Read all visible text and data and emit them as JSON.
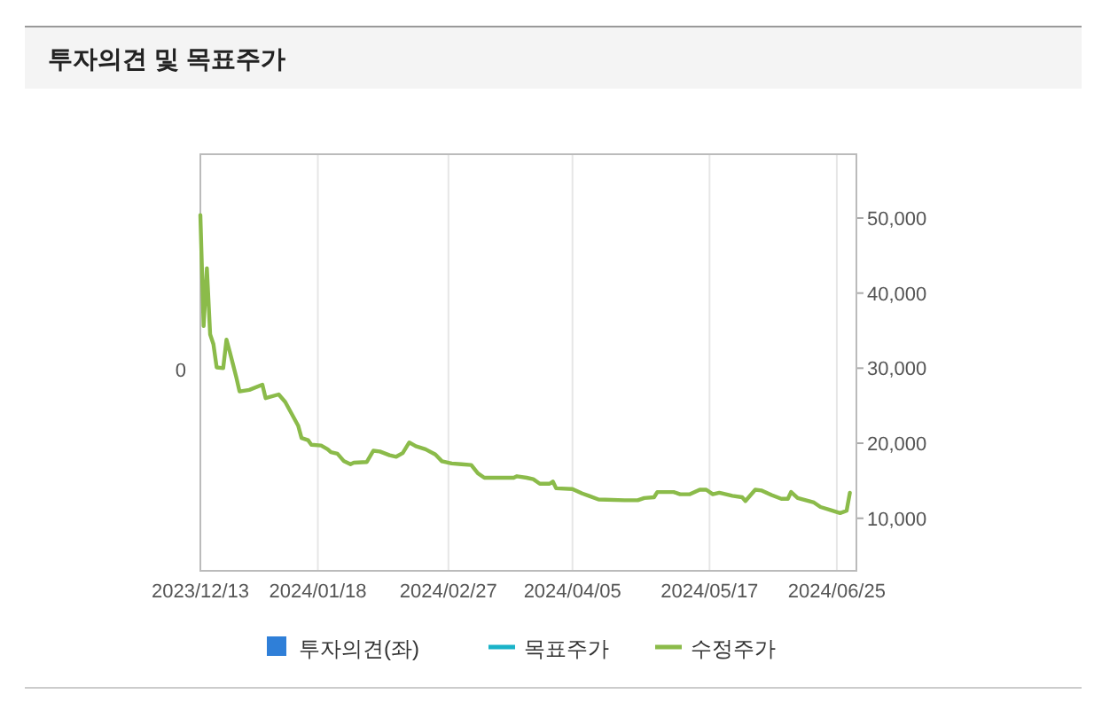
{
  "chart_data": {
    "type": "line",
    "title": "투자의견 및 목표주가",
    "xlim": [
      "2023-12-13",
      "2024-07-01"
    ],
    "xticks": [
      {
        "value": "2023-12-13",
        "label": "2023/12/13"
      },
      {
        "value": "2024-01-18",
        "label": "2024/01/18"
      },
      {
        "value": "2024-02-27",
        "label": "2024/02/27"
      },
      {
        "value": "2024-04-05",
        "label": "2024/04/05"
      },
      {
        "value": "2024-05-17",
        "label": "2024/05/17"
      },
      {
        "value": "2024-06-25",
        "label": "2024/06/25"
      }
    ],
    "annotations": [
      "0"
    ],
    "ylim": [
      3000,
      58500
    ],
    "yticks": [
      {
        "value": 10000,
        "label": "10,000"
      },
      {
        "value": 20000,
        "label": "20,000"
      },
      {
        "value": 30000,
        "label": "30,000"
      },
      {
        "value": 40000,
        "label": "40,000"
      },
      {
        "value": 50000,
        "label": "50,000"
      }
    ],
    "grid": "x",
    "legend": "bottom",
    "series": [
      {
        "name": "투자의견(좌)",
        "type": "bar",
        "color": "#2f7fd8"
      },
      {
        "name": "목표주가",
        "color": "#1ab3c8"
      },
      {
        "name": "수정주가",
        "color": "#8bbb4a",
        "x": [
          "2023-12-13",
          "2023-12-14",
          "2023-12-15",
          "2023-12-16",
          "2023-12-17",
          "2023-12-18",
          "2023-12-20",
          "2023-12-21",
          "2023-12-22",
          "2023-12-23",
          "2023-12-24",
          "2023-12-25",
          "2023-12-28",
          "2024-01-01",
          "2024-01-02",
          "2024-01-06",
          "2024-01-08",
          "2024-01-10",
          "2024-01-12",
          "2024-01-13",
          "2024-01-15",
          "2024-01-16",
          "2024-01-19",
          "2024-01-21",
          "2024-01-22",
          "2024-01-24",
          "2024-01-26",
          "2024-01-28",
          "2024-01-29",
          "2024-02-02",
          "2024-02-04",
          "2024-02-06",
          "2024-02-09",
          "2024-02-11",
          "2024-02-13",
          "2024-02-15",
          "2024-02-17",
          "2024-02-20",
          "2024-02-23",
          "2024-02-25",
          "2024-02-28",
          "2024-03-02",
          "2024-03-05",
          "2024-03-07",
          "2024-03-09",
          "2024-03-18",
          "2024-03-19",
          "2024-03-22",
          "2024-03-24",
          "2024-03-26",
          "2024-03-29",
          "2024-03-30",
          "2024-03-31",
          "2024-04-05",
          "2024-04-08",
          "2024-04-10",
          "2024-04-13",
          "2024-04-21",
          "2024-04-25",
          "2024-04-27",
          "2024-04-30",
          "2024-05-01",
          "2024-05-06",
          "2024-05-08",
          "2024-05-11",
          "2024-05-14",
          "2024-05-16",
          "2024-05-18",
          "2024-05-20",
          "2024-05-24",
          "2024-05-27",
          "2024-05-28",
          "2024-05-31",
          "2024-06-02",
          "2024-06-05",
          "2024-06-08",
          "2024-06-10",
          "2024-06-11",
          "2024-06-13",
          "2024-06-18",
          "2024-06-20",
          "2024-06-23",
          "2024-06-26",
          "2024-06-28",
          "2024-06-29"
        ],
        "values": [
          50400,
          35600,
          43300,
          34500,
          33200,
          30100,
          30000,
          33800,
          32200,
          30500,
          28800,
          26900,
          27100,
          27800,
          26000,
          26500,
          25500,
          23900,
          22300,
          20700,
          20400,
          19800,
          19700,
          19200,
          18800,
          18600,
          17600,
          17200,
          17400,
          17500,
          19000,
          18900,
          18400,
          18200,
          18700,
          20100,
          19600,
          19200,
          18500,
          17600,
          17300,
          17200,
          17100,
          16000,
          15400,
          15400,
          15600,
          15400,
          15200,
          14600,
          14600,
          14900,
          14000,
          13900,
          13300,
          13000,
          12500,
          12400,
          12400,
          12700,
          12800,
          13500,
          13500,
          13200,
          13200,
          13800,
          13800,
          13200,
          13400,
          13000,
          12800,
          12300,
          13800,
          13700,
          13100,
          12600,
          12600,
          13500,
          12700,
          12100,
          11500,
          11100,
          10700,
          11000,
          13400
        ]
      }
    ]
  }
}
